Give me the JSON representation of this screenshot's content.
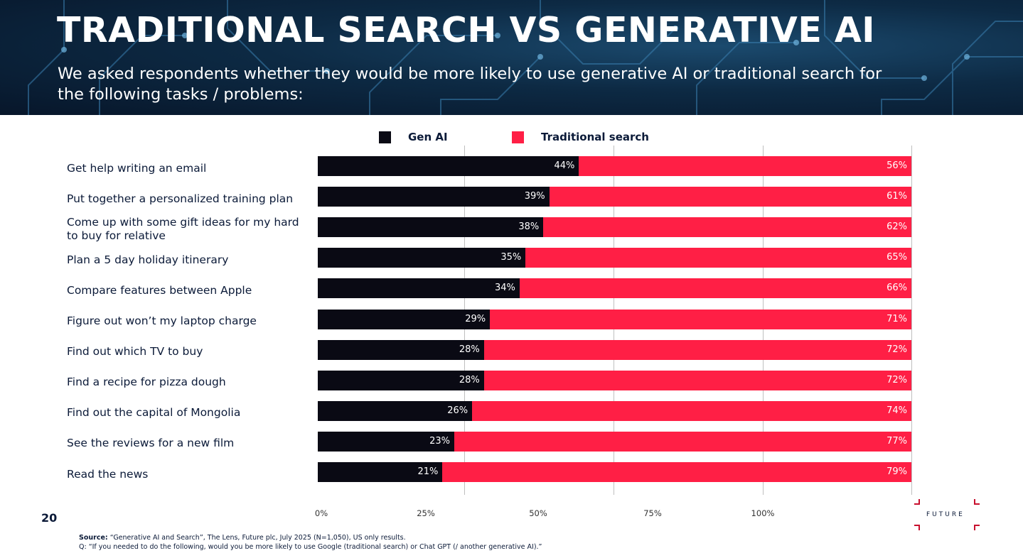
{
  "header": {
    "title": "TRADITIONAL SEARCH VS GENERATIVE AI",
    "subtitle": "We asked respondents whether they would be more likely to use generative AI or traditional search for the following tasks / problems:"
  },
  "colors": {
    "gen_ai": "#0a0a14",
    "traditional": "#ff1f45",
    "text": "#0b1a38"
  },
  "chart_data": {
    "type": "bar",
    "orientation": "horizontal",
    "stacked": true,
    "categories": [
      "Get help writing an email",
      "Put together a personalized training plan",
      "Come up with some gift ideas for my hard to buy for relative",
      "Plan a 5 day holiday itinerary",
      "Compare features between Apple",
      "Figure out won’t my laptop charge",
      "Find out which TV to buy",
      "Find a recipe for pizza dough",
      "Find out the capital of Mongolia",
      "See the reviews for a new film",
      "Read the news"
    ],
    "series": [
      {
        "name": "Gen AI",
        "values": [
          44,
          39,
          38,
          35,
          34,
          29,
          28,
          28,
          26,
          23,
          21
        ]
      },
      {
        "name": "Traditional search",
        "values": [
          56,
          61,
          62,
          65,
          66,
          71,
          72,
          72,
          74,
          77,
          79
        ]
      }
    ],
    "xticks": [
      "0%",
      "25%",
      "50%",
      "75%",
      "100%"
    ],
    "legend": "top-center",
    "grid": true
  },
  "page_number": "20",
  "source": {
    "label": "Source:",
    "text": "“Generative AI and Search”, The Lens, Future plc, July 2025 (N=1,050), US only results.",
    "question": "Q: “If you needed to do the following, would you be more likely to use Google (traditional search) or Chat GPT (/ another generative AI).”"
  },
  "logo": {
    "text": "FUTURE"
  }
}
